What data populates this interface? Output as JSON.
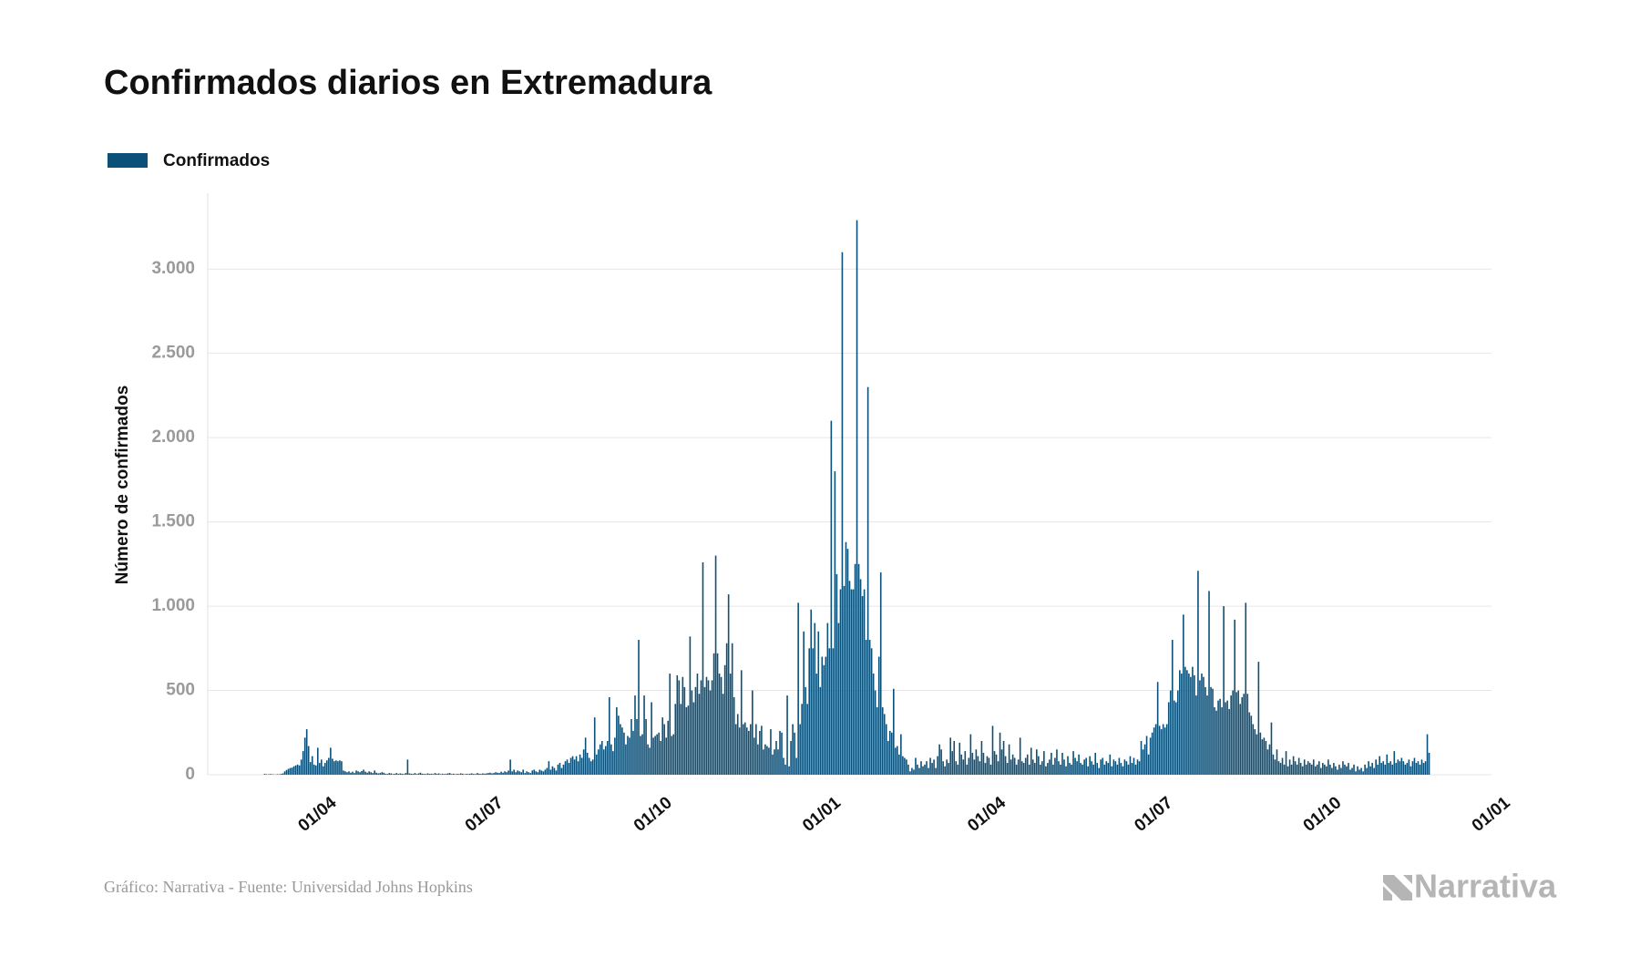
{
  "chart_data": {
    "type": "bar",
    "title": "Confirmados diarios en Extremadura",
    "y_label": "Número de confirmados",
    "footer": "Gráfico: Narrativa - Fuente: Universidad Johns Hopkins",
    "brand": "Narrativa",
    "legend": "top-left",
    "grid": true,
    "ylim": [
      0,
      3450
    ],
    "yticks": [
      0,
      500,
      {
        "value": 1000,
        "label": "1.000"
      },
      {
        "value": 1500,
        "label": "1.500"
      },
      {
        "value": 2000,
        "label": "2.000"
      },
      {
        "value": 2500,
        "label": "2.500"
      },
      {
        "value": 3000,
        "label": "3.000"
      }
    ],
    "categories": [
      null,
      null,
      null,
      null,
      null,
      null,
      null,
      null,
      null,
      null,
      null,
      null,
      null,
      null,
      null,
      null,
      null,
      null,
      null,
      null,
      null,
      null,
      null,
      null,
      null,
      null,
      null,
      null,
      null,
      null,
      null,
      null,
      null,
      null,
      null,
      null,
      null,
      null,
      null,
      null,
      null,
      null,
      null,
      null,
      null,
      null,
      null,
      null,
      null,
      null,
      null,
      null,
      null,
      null,
      null,
      null,
      null,
      null,
      null,
      null,
      "01/04",
      null,
      null,
      null,
      null,
      null,
      null,
      null,
      null,
      null,
      null,
      null,
      null,
      null,
      null,
      null,
      null,
      null,
      null,
      null,
      null,
      null,
      null,
      null,
      null,
      null,
      null,
      null,
      null,
      null,
      null,
      null,
      null,
      null,
      null,
      null,
      null,
      null,
      null,
      null,
      null,
      null,
      null,
      null,
      null,
      null,
      null,
      null,
      null,
      null,
      null,
      null,
      null,
      null,
      null,
      null,
      null,
      null,
      null,
      null,
      null,
      null,
      null,
      null,
      null,
      null,
      null,
      null,
      null,
      null,
      null,
      null,
      null,
      null,
      null,
      null,
      null,
      null,
      null,
      null,
      null,
      null,
      null,
      null,
      null,
      null,
      null,
      null,
      null,
      null,
      null,
      "01/07",
      null,
      null,
      null,
      null,
      null,
      null,
      null,
      null,
      null,
      null,
      null,
      null,
      null,
      null,
      null,
      null,
      null,
      null,
      null,
      null,
      null,
      null,
      null,
      null,
      null,
      null,
      null,
      null,
      null,
      null,
      null,
      null,
      null,
      null,
      null,
      null,
      null,
      null,
      null,
      null,
      null,
      null,
      null,
      null,
      null,
      null,
      null,
      null,
      null,
      null,
      null,
      null,
      null,
      null,
      null,
      null,
      null,
      null,
      null,
      null,
      null,
      null,
      null,
      null,
      null,
      null,
      null,
      null,
      null,
      null,
      null,
      null,
      null,
      null,
      null,
      null,
      null,
      null,
      null,
      null,
      null,
      null,
      null,
      null,
      null,
      null,
      null,
      null,
      null,
      null,
      null,
      "01/10",
      null,
      null,
      null,
      null,
      null,
      null,
      null,
      null,
      null,
      null,
      null,
      null,
      null,
      null,
      null,
      null,
      null,
      null,
      null,
      null,
      null,
      null,
      null,
      null,
      null,
      null,
      null,
      null,
      null,
      null,
      null,
      null,
      null,
      null,
      null,
      null,
      null,
      null,
      null,
      null,
      null,
      null,
      null,
      null,
      null,
      null,
      null,
      null,
      null,
      null,
      null,
      null,
      null,
      null,
      null,
      null,
      null,
      null,
      null,
      null,
      null,
      null,
      null,
      null,
      null,
      null,
      null,
      null,
      null,
      null,
      null,
      null,
      null,
      null,
      null,
      null,
      null,
      null,
      null,
      null,
      null,
      null,
      null,
      null,
      null,
      null,
      null,
      null,
      null,
      null,
      null,
      "01/01",
      null,
      null,
      null,
      null,
      null,
      null,
      null,
      null,
      null,
      null,
      null,
      null,
      null,
      null,
      null,
      null,
      null,
      null,
      null,
      null,
      null,
      null,
      null,
      null,
      null,
      null,
      null,
      null,
      null,
      null,
      null,
      null,
      null,
      null,
      null,
      null,
      null,
      null,
      null,
      null,
      null,
      null,
      null,
      null,
      null,
      null,
      null,
      null,
      null,
      null,
      null,
      null,
      null,
      null,
      null,
      null,
      null,
      null,
      null,
      null,
      null,
      null,
      null,
      null,
      null,
      null,
      null,
      null,
      null,
      null,
      null,
      null,
      null,
      null,
      null,
      null,
      null,
      null,
      null,
      null,
      null,
      null,
      null,
      null,
      null,
      null,
      null,
      null,
      null,
      "01/04",
      null,
      null,
      null,
      null,
      null,
      null,
      null,
      null,
      null,
      null,
      null,
      null,
      null,
      null,
      null,
      null,
      null,
      null,
      null,
      null,
      null,
      null,
      null,
      null,
      null,
      null,
      null,
      null,
      null,
      null,
      null,
      null,
      null,
      null,
      null,
      null,
      null,
      null,
      null,
      null,
      null,
      null,
      null,
      null,
      null,
      null,
      null,
      null,
      null,
      null,
      null,
      null,
      null,
      null,
      null,
      null,
      null,
      null,
      null,
      null,
      null,
      null,
      null,
      null,
      null,
      null,
      null,
      null,
      null,
      null,
      null,
      null,
      null,
      null,
      null,
      null,
      null,
      null,
      null,
      null,
      null,
      null,
      null,
      null,
      null,
      null,
      null,
      null,
      null,
      null,
      "01/07",
      null,
      null,
      null,
      null,
      null,
      null,
      null,
      null,
      null,
      null,
      null,
      null,
      null,
      null,
      null,
      null,
      null,
      null,
      null,
      null,
      null,
      null,
      null,
      null,
      null,
      null,
      null,
      null,
      null,
      null,
      null,
      null,
      null,
      null,
      null,
      null,
      null,
      null,
      null,
      null,
      null,
      null,
      null,
      null,
      null,
      null,
      null,
      null,
      null,
      null,
      null,
      null,
      null,
      null,
      null,
      null,
      null,
      null,
      null,
      null,
      null,
      null,
      null,
      null,
      null,
      null,
      null,
      null,
      null,
      null,
      null,
      null,
      null,
      null,
      null,
      null,
      null,
      null,
      null,
      null,
      null,
      null,
      null,
      null,
      null,
      null,
      null,
      null,
      null,
      null,
      null,
      "01/10",
      null,
      null,
      null,
      null,
      null,
      null,
      null,
      null,
      null,
      null,
      null,
      null,
      null,
      null,
      null,
      null,
      null,
      null,
      null,
      null,
      null,
      null,
      null,
      null,
      null,
      null,
      null,
      null,
      null,
      null,
      null,
      null,
      null,
      null,
      null,
      null,
      null,
      null,
      null,
      null,
      null,
      null,
      null,
      null,
      null,
      null,
      null,
      null,
      null,
      null,
      null,
      null,
      null,
      null,
      null,
      null,
      null,
      null,
      null,
      null,
      null,
      null,
      null,
      null,
      null,
      null,
      null,
      null,
      null,
      null,
      null,
      null,
      null,
      null,
      null,
      null,
      null,
      null,
      null,
      null,
      null,
      null,
      null,
      null,
      null,
      null,
      null,
      null,
      null,
      null,
      null,
      "01/01"
    ],
    "series": [
      {
        "name": "Confirmados",
        "color": "#0b5079",
        "values": [
          null,
          null,
          null,
          null,
          null,
          null,
          null,
          null,
          null,
          null,
          null,
          null,
          null,
          null,
          null,
          null,
          null,
          null,
          null,
          null,
          null,
          null,
          null,
          null,
          null,
          null,
          null,
          null,
          null,
          null,
          null,
          5,
          3,
          2,
          4,
          3,
          2,
          1,
          3,
          2,
          5,
          8,
          20,
          28,
          35,
          40,
          42,
          50,
          55,
          60,
          55,
          90,
          140,
          220,
          270,
          170,
          75,
          110,
          60,
          55,
          160,
          70,
          90,
          50,
          70,
          85,
          100,
          160,
          95,
          80,
          85,
          80,
          85,
          80,
          25,
          20,
          15,
          20,
          12,
          18,
          10,
          25,
          20,
          15,
          22,
          30,
          18,
          12,
          20,
          15,
          10,
          25,
          12,
          8,
          10,
          15,
          12,
          6,
          5,
          10,
          8,
          4,
          6,
          10,
          5,
          8,
          6,
          4,
          10,
          90,
          8,
          6,
          5,
          10,
          4,
          8,
          12,
          6,
          5,
          4,
          8,
          5,
          6,
          4,
          10,
          5,
          8,
          3,
          6,
          4,
          5,
          8,
          10,
          4,
          6,
          3,
          5,
          4,
          8,
          6,
          3,
          5,
          4,
          6,
          8,
          5,
          4,
          10,
          6,
          5,
          8,
          6,
          8,
          10,
          12,
          8,
          10,
          15,
          12,
          10,
          18,
          12,
          20,
          15,
          25,
          90,
          20,
          30,
          15,
          25,
          20,
          15,
          30,
          10,
          20,
          15,
          10,
          25,
          30,
          20,
          15,
          30,
          25,
          20,
          30,
          40,
          80,
          30,
          50,
          40,
          25,
          60,
          70,
          40,
          60,
          80,
          90,
          70,
          100,
          110,
          90,
          110,
          80,
          120,
          100,
          150,
          220,
          130,
          100,
          80,
          90,
          340,
          120,
          150,
          180,
          200,
          150,
          170,
          200,
          460,
          180,
          140,
          220,
          400,
          350,
          300,
          280,
          250,
          180,
          230,
          220,
          330,
          260,
          470,
          330,
          800,
          230,
          240,
          470,
          330,
          180,
          160,
          430,
          220,
          230,
          240,
          250,
          200,
          340,
          300,
          220,
          320,
          600,
          230,
          240,
          420,
          590,
          560,
          420,
          580,
          520,
          400,
          410,
          820,
          500,
          430,
          520,
          600,
          480,
          560,
          1260,
          520,
          580,
          560,
          500,
          560,
          720,
          1300,
          720,
          600,
          580,
          480,
          650,
          780,
          1070,
          600,
          780,
          460,
          300,
          360,
          280,
          620,
          300,
          310,
          280,
          260,
          300,
          500,
          220,
          300,
          180,
          260,
          290,
          150,
          180,
          170,
          160,
          270,
          120,
          150,
          200,
          150,
          260,
          250,
          100,
          60,
          470,
          50,
          200,
          300,
          250,
          100,
          1020,
          300,
          420,
          850,
          520,
          420,
          750,
          980,
          750,
          900,
          600,
          850,
          520,
          700,
          650,
          700,
          900,
          750,
          2100,
          750,
          1800,
          1190,
          900,
          1100,
          3100,
          1120,
          1380,
          1340,
          1150,
          1100,
          1100,
          1250,
          3290,
          1250,
          1160,
          1060,
          1100,
          800,
          2300,
          800,
          750,
          600,
          500,
          400,
          700,
          1200,
          400,
          360,
          300,
          200,
          260,
          250,
          510,
          160,
          170,
          120,
          240,
          110,
          100,
          90,
          60,
          20,
          40,
          30,
          100,
          60,
          40,
          80,
          50,
          60,
          80,
          40,
          100,
          70,
          90,
          40,
          110,
          180,
          150,
          80,
          50,
          90,
          70,
          220,
          140,
          200,
          80,
          60,
          190,
          120,
          90,
          140,
          60,
          100,
          240,
          130,
          90,
          150,
          110,
          80,
          200,
          130,
          70,
          110,
          100,
          60,
          290,
          140,
          120,
          80,
          250,
          150,
          200,
          110,
          70,
          180,
          90,
          120,
          100,
          60,
          90,
          220,
          80,
          70,
          100,
          120,
          60,
          160,
          90,
          70,
          150,
          110,
          60,
          80,
          140,
          50,
          70,
          90,
          130,
          60,
          100,
          150,
          80,
          60,
          130,
          90,
          50,
          110,
          70,
          60,
          140,
          100,
          80,
          120,
          70,
          60,
          90,
          100,
          50,
          110,
          80,
          60,
          130,
          70,
          40,
          90,
          100,
          60,
          80,
          70,
          120,
          50,
          90,
          80,
          60,
          100,
          70,
          50,
          90,
          80,
          60,
          110,
          70,
          100,
          60,
          90,
          80,
          200,
          150,
          180,
          230,
          120,
          220,
          250,
          280,
          300,
          550,
          290,
          270,
          300,
          280,
          300,
          430,
          500,
          800,
          440,
          430,
          500,
          620,
          600,
          950,
          640,
          620,
          600,
          580,
          640,
          590,
          470,
          1210,
          560,
          600,
          580,
          520,
          470,
          1090,
          520,
          510,
          400,
          380,
          440,
          450,
          400,
          1000,
          430,
          440,
          390,
          470,
          500,
          920,
          490,
          500,
          420,
          460,
          480,
          1020,
          480,
          370,
          350,
          300,
          270,
          240,
          670,
          250,
          210,
          220,
          200,
          150,
          180,
          310,
          120,
          90,
          150,
          80,
          70,
          100,
          60,
          140,
          50,
          90,
          60,
          110,
          80,
          60,
          100,
          70,
          50,
          90,
          60,
          80,
          70,
          60,
          90,
          50,
          60,
          80,
          40,
          70,
          60,
          50,
          90,
          60,
          40,
          70,
          50,
          30,
          60,
          40,
          80,
          60,
          50,
          70,
          30,
          40,
          60,
          20,
          50,
          30,
          40,
          20,
          60,
          40,
          80,
          50,
          70,
          40,
          90,
          60,
          110,
          70,
          80,
          60,
          120,
          70,
          80,
          60,
          140,
          70,
          90,
          80,
          100,
          80,
          60,
          70,
          90,
          50,
          80,
          100,
          70,
          80,
          60,
          90,
          70,
          80,
          240,
          130,
          null,
          null,
          null,
          null,
          null,
          null,
          null,
          null,
          null,
          null,
          null,
          null,
          null,
          null,
          null,
          null,
          null,
          null,
          null,
          null,
          null,
          null,
          null,
          null,
          null,
          null,
          null,
          null,
          null,
          null,
          null,
          null,
          null,
          null
        ]
      }
    ]
  }
}
